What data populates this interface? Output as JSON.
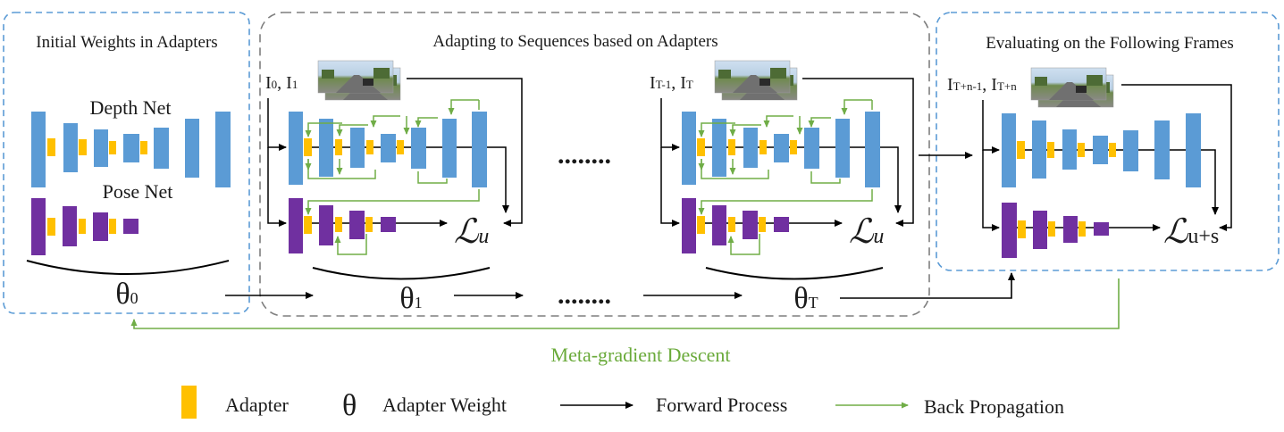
{
  "colors": {
    "depth": "#5b9bd5",
    "pose": "#7030a0",
    "adapter": "#ffc000",
    "forward": "#000000",
    "backprop": "#70ad47",
    "box_blue": "#5b9bd5",
    "box_gray": "#7f7f7f"
  },
  "sections": {
    "initial": {
      "title": "Initial Weights in Adapters",
      "depth_label": "Depth Net",
      "pose_label": "Pose Net",
      "theta": "θ",
      "theta_sub": "0"
    },
    "adapting": {
      "title": "Adapting to Sequences based on Adapters",
      "step1": {
        "frames": "I",
        "frames_sub_a": "0",
        "frames_mid": ", I",
        "frames_sub_b": "1",
        "theta": "θ",
        "theta_sub": "1",
        "loss": "ℒ",
        "loss_sub": "u"
      },
      "stepT": {
        "frames": "I",
        "frames_sub_a": "T-1",
        "frames_mid": ", I",
        "frames_sub_b": "T",
        "theta": "θ",
        "theta_sub": "T",
        "loss": "ℒ",
        "loss_sub": "u"
      },
      "dots": "........"
    },
    "evaluating": {
      "title": "Evaluating on the Following Frames",
      "frames": "I",
      "frames_sub_a": "T+n-1",
      "frames_mid": ", I",
      "frames_sub_b": "T+n",
      "loss": "ℒ",
      "loss_sub": "u+s"
    }
  },
  "meta_gradient": "Meta-gradient Descent",
  "legend": {
    "adapter": "Adapter",
    "theta_symbol": "θ",
    "weight": "Adapter Weight",
    "forward": "Forward Process",
    "backprop": "Back Propagation"
  },
  "icons": [
    "road-image-icon",
    "arrow-icon",
    "adapter-icon"
  ]
}
